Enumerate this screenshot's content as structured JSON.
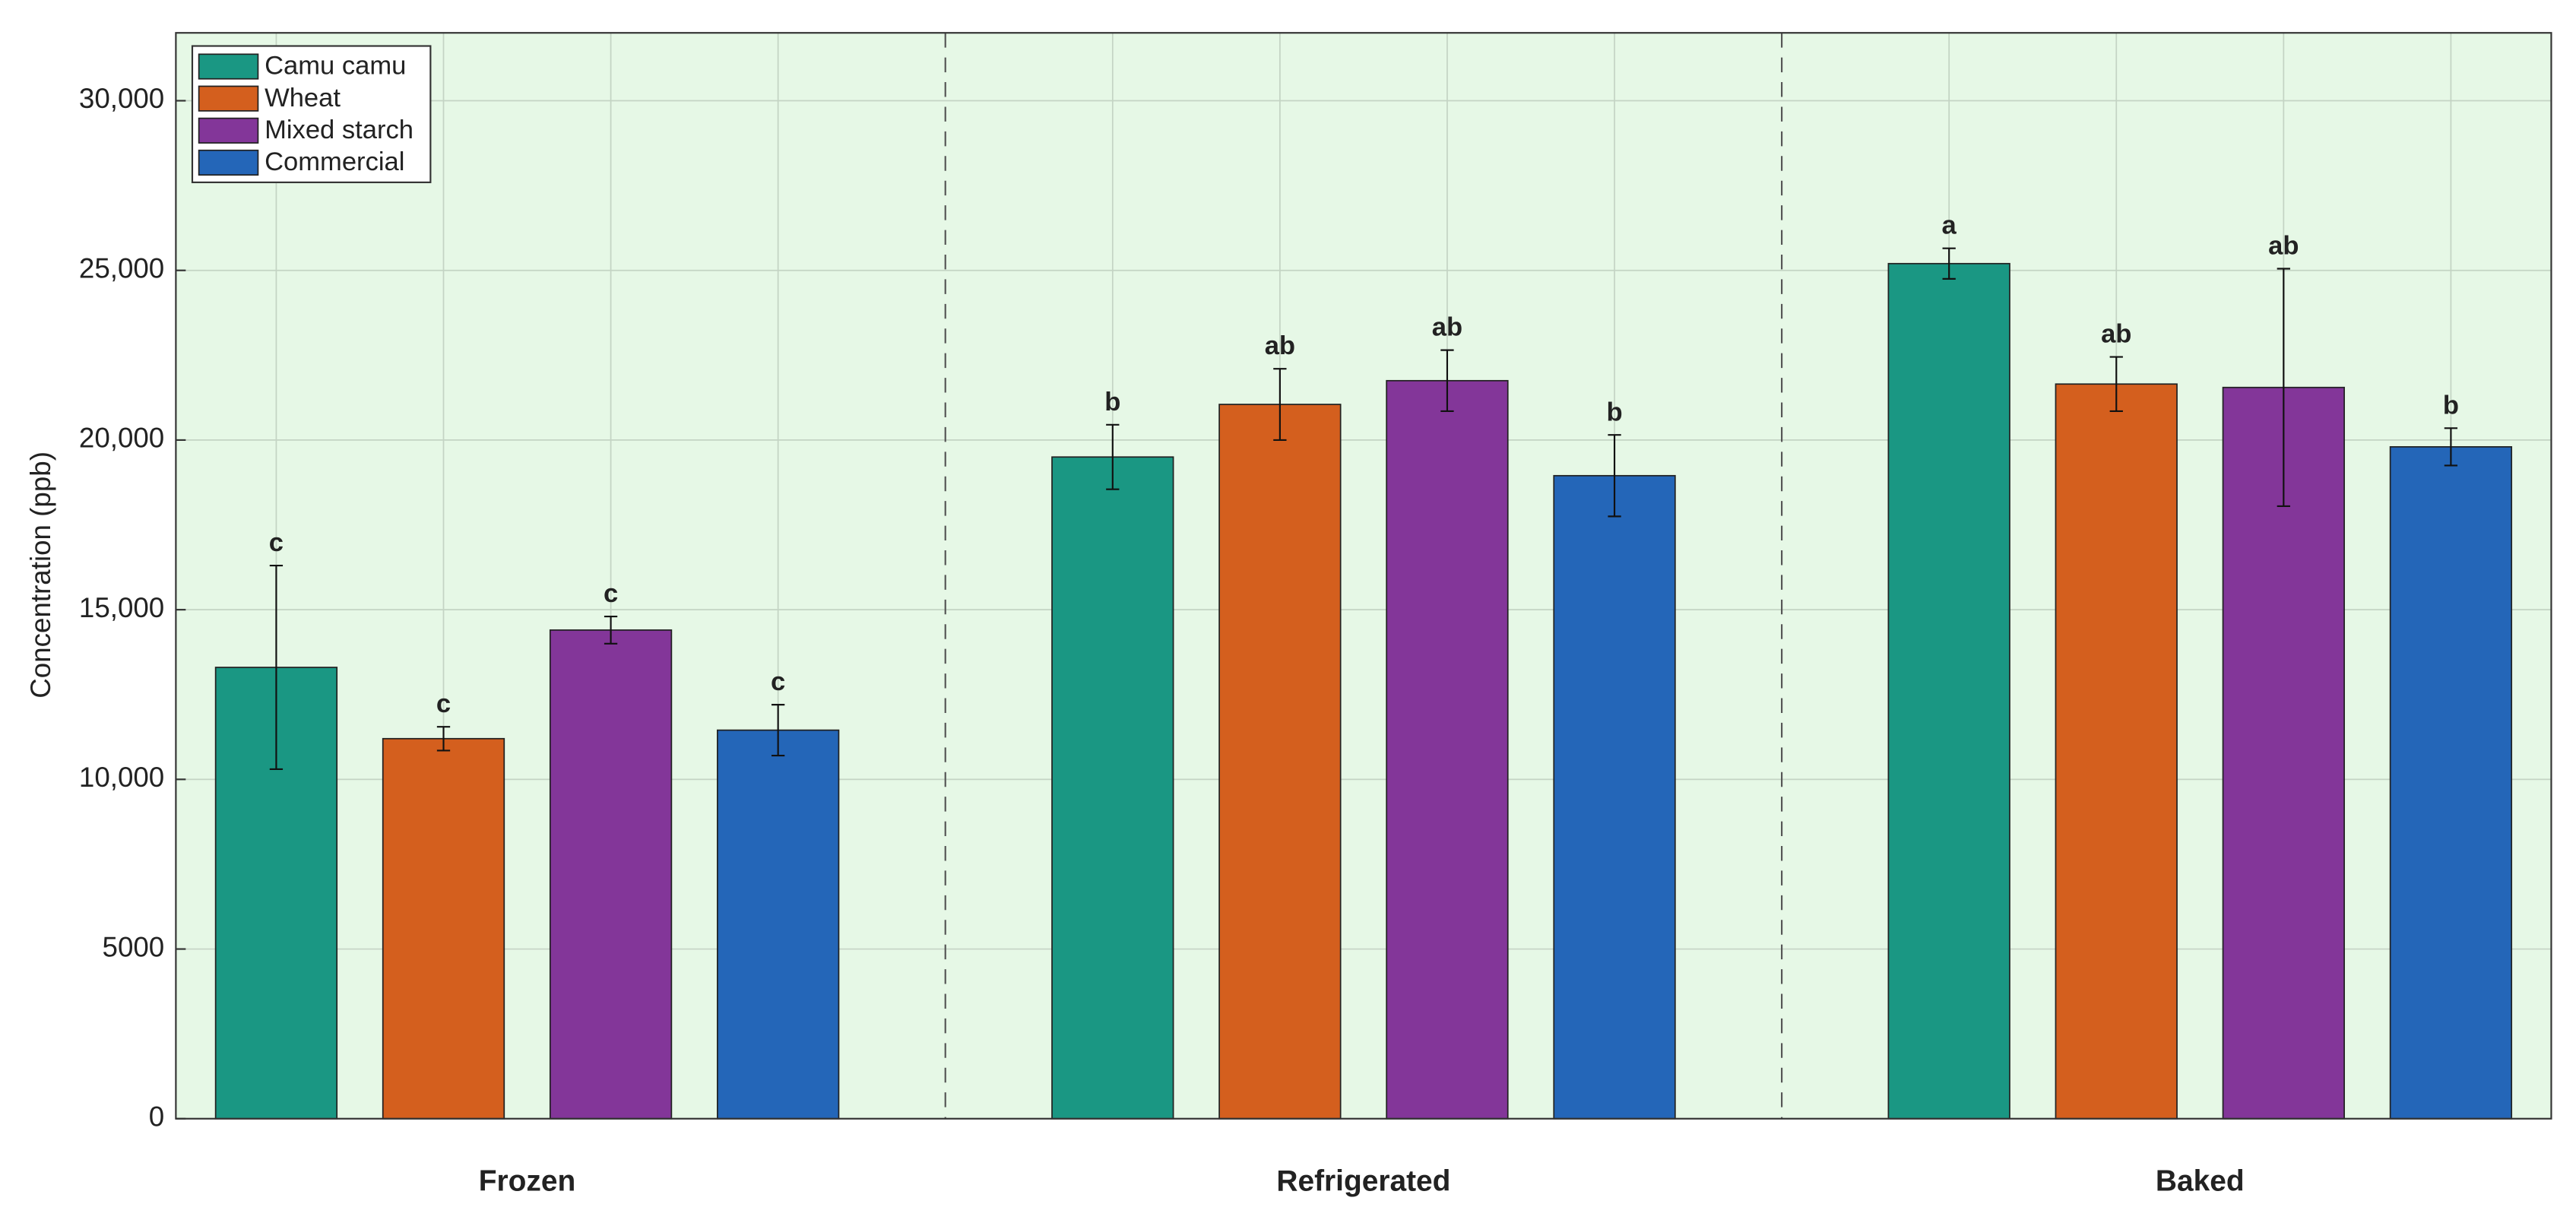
{
  "chart_data": {
    "type": "bar",
    "y_label": "Concentration (ppb)",
    "categories": [
      "Frozen",
      "Refrigerated",
      "Baked"
    ],
    "series": [
      {
        "name": "Camu camu",
        "color": "#1a9783",
        "values": [
          13300,
          19500,
          25200
        ],
        "errors": [
          3000,
          950,
          450
        ],
        "labels": [
          "c",
          "b",
          "a"
        ]
      },
      {
        "name": "Wheat",
        "color": "#d45f1e",
        "values": [
          11200,
          21050,
          21650
        ],
        "errors": [
          350,
          1050,
          800
        ],
        "labels": [
          "c",
          "ab",
          "ab"
        ]
      },
      {
        "name": "Mixed starch",
        "color": "#833699",
        "values": [
          14400,
          21750,
          21550
        ],
        "errors": [
          400,
          900,
          3500
        ],
        "labels": [
          "c",
          "ab",
          "ab"
        ]
      },
      {
        "name": "Commercial",
        "color": "#2466b8",
        "values": [
          11450,
          18950,
          19800
        ],
        "errors": [
          750,
          1200,
          550
        ],
        "labels": [
          "c",
          "b",
          "b"
        ]
      }
    ],
    "ylim": [
      0,
      32000
    ],
    "yticks": [
      0,
      5000,
      {
        "value": 10000,
        "label": "10,000"
      },
      {
        "value": 15000,
        "label": "15,000"
      },
      {
        "value": 20000,
        "label": "20,000"
      },
      {
        "value": 25000,
        "label": "25,000"
      },
      {
        "value": 30000,
        "label": "30,000"
      }
    ],
    "grid": true,
    "background": "#e6f8e6",
    "legend": "upper left"
  }
}
